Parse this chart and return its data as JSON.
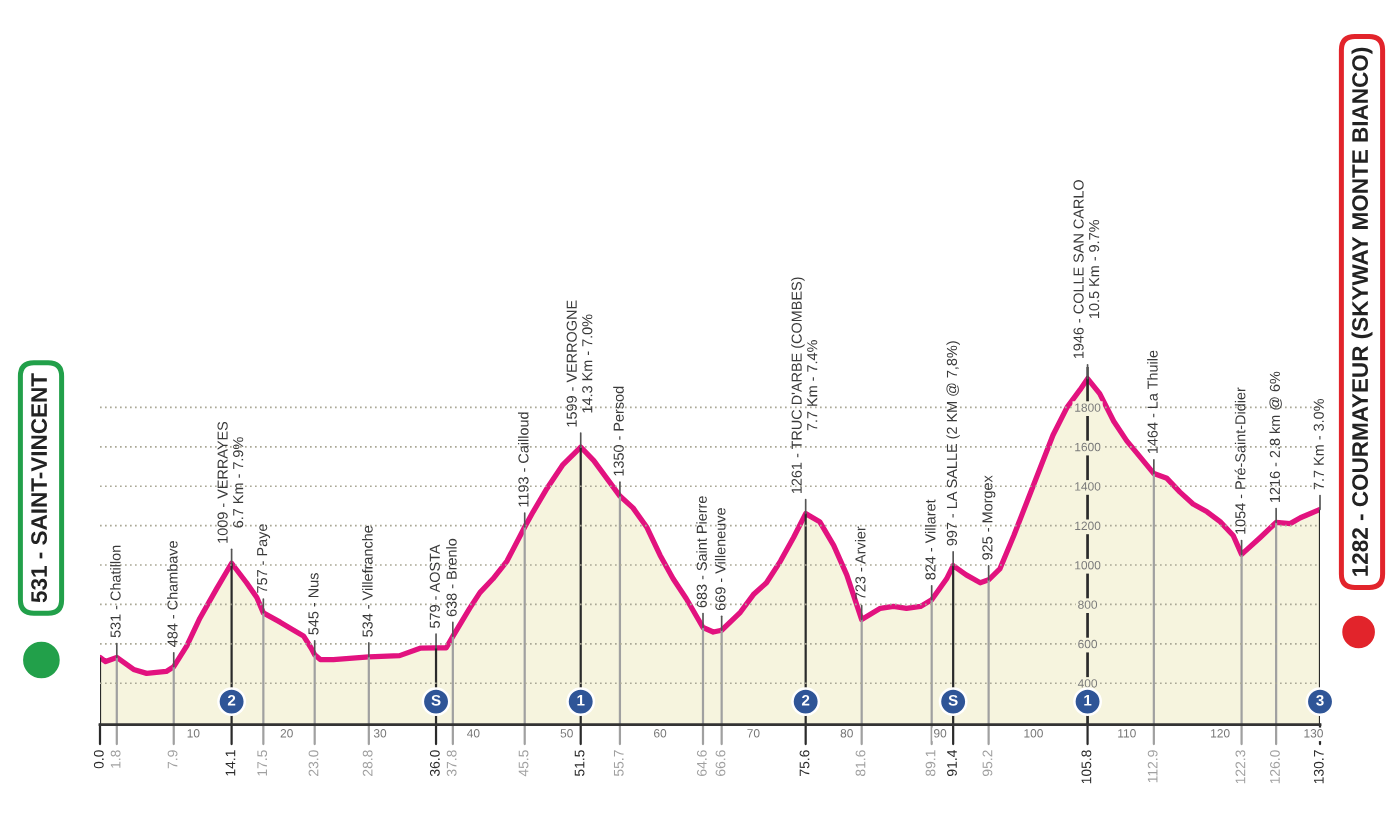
{
  "chart_data": {
    "type": "area",
    "x": [
      0,
      0.6,
      1.8,
      3.6,
      5.0,
      7.1,
      7.9,
      9.3,
      10.7,
      12.5,
      14.1,
      15.7,
      16.8,
      17.5,
      19.3,
      20.7,
      21.8,
      22.6,
      23.0,
      23.6,
      25.0,
      28.8,
      32.1,
      34.3,
      36.0,
      37.1,
      37.8,
      39.6,
      40.7,
      42.1,
      43.6,
      45.5,
      46.4,
      47.9,
      49.6,
      51.5,
      52.9,
      54.3,
      55.7,
      57.1,
      58.6,
      60.0,
      61.4,
      62.8,
      64.6,
      65.7,
      66.6,
      68.6,
      70.0,
      71.4,
      72.9,
      74.3,
      75.6,
      77.1,
      78.6,
      80.0,
      81.6,
      83.6,
      85.0,
      86.4,
      87.9,
      89.1,
      90.7,
      91.4,
      92.8,
      94.3,
      95.2,
      96.4,
      97.9,
      99.3,
      100.7,
      102.1,
      103.6,
      105.0,
      105.8,
      107.1,
      108.6,
      110.0,
      111.4,
      112.9,
      114.3,
      115.7,
      117.1,
      118.6,
      120.0,
      121.4,
      122.3,
      124.3,
      126.0,
      127.5,
      128.6,
      130.7
    ],
    "series": [
      {
        "color": "#f6f4de",
        "values": [
          531,
          510,
          531,
          470,
          450,
          460,
          484,
          590,
          730,
          880,
          1009,
          910,
          835,
          757,
          710,
          670,
          640,
          580,
          545,
          520,
          520,
          534,
          540,
          578,
          579,
          580,
          638,
          780,
          860,
          930,
          1020,
          1193,
          1270,
          1390,
          1510,
          1599,
          1530,
          1440,
          1350,
          1290,
          1190,
          1050,
          930,
          830,
          683,
          660,
          669,
          760,
          850,
          910,
          1020,
          1140,
          1261,
          1220,
          1100,
          950,
          723,
          780,
          790,
          780,
          790,
          824,
          930,
          997,
          950,
          910,
          925,
          980,
          1150,
          1320,
          1490,
          1660,
          1800,
          1890,
          1946,
          1870,
          1730,
          1630,
          1550,
          1464,
          1440,
          1370,
          1310,
          1270,
          1220,
          1150,
          1054,
          1140,
          1216,
          1210,
          1240,
          1282
        ]
      }
    ],
    "xlim": [
      0,
      130.7
    ],
    "xticks": [
      10,
      20,
      30,
      40,
      50,
      60,
      70,
      80,
      90,
      100,
      110,
      120,
      130
    ],
    "ylim": [
      190,
      2000
    ],
    "yticks": [
      400,
      600,
      800,
      1000,
      1200,
      1400,
      1600,
      1800
    ],
    "grid": "y",
    "ref_lines": [
      {
        "axis": "x",
        "value": 0.0,
        "label": "0.0",
        "color": "#2a2a2a"
      },
      {
        "axis": "x",
        "value": 1.8,
        "label": "1.8",
        "color": "#a0a0a0"
      },
      {
        "axis": "x",
        "value": 7.9,
        "label": "7.9",
        "color": "#a0a0a0"
      },
      {
        "axis": "x",
        "value": 14.1,
        "label": "14.1",
        "color": "#2a2a2a"
      },
      {
        "axis": "x",
        "value": 17.5,
        "label": "17.5",
        "color": "#a0a0a0"
      },
      {
        "axis": "x",
        "value": 23.0,
        "label": "23.0",
        "color": "#a0a0a0"
      },
      {
        "axis": "x",
        "value": 28.8,
        "label": "28.8",
        "color": "#a0a0a0"
      },
      {
        "axis": "x",
        "value": 36.0,
        "label": "36.0",
        "color": "#2a2a2a"
      },
      {
        "axis": "x",
        "value": 37.8,
        "label": "37.8",
        "color": "#a0a0a0"
      },
      {
        "axis": "x",
        "value": 45.5,
        "label": "45.5",
        "color": "#a0a0a0"
      },
      {
        "axis": "x",
        "value": 51.5,
        "label": "51.5",
        "color": "#2a2a2a"
      },
      {
        "axis": "x",
        "value": 55.7,
        "label": "55.7",
        "color": "#a0a0a0"
      },
      {
        "axis": "x",
        "value": 64.6,
        "label": "64.6",
        "color": "#a0a0a0"
      },
      {
        "axis": "x",
        "value": 66.6,
        "label": "66.6",
        "color": "#a0a0a0"
      },
      {
        "axis": "x",
        "value": 75.6,
        "label": "75.6",
        "color": "#2a2a2a"
      },
      {
        "axis": "x",
        "value": 81.6,
        "label": "81.6",
        "color": "#a0a0a0"
      },
      {
        "axis": "x",
        "value": 89.1,
        "label": "89.1",
        "color": "#a0a0a0"
      },
      {
        "axis": "x",
        "value": 91.4,
        "label": "91.4",
        "color": "#2a2a2a"
      },
      {
        "axis": "x",
        "value": 95.2,
        "label": "95.2",
        "color": "#a0a0a0"
      },
      {
        "axis": "x",
        "value": 105.8,
        "label": "105.8",
        "color": "#2a2a2a"
      },
      {
        "axis": "x",
        "value": 112.9,
        "label": "112.9",
        "color": "#a0a0a0"
      },
      {
        "axis": "x",
        "value": 122.3,
        "label": "122.3",
        "color": "#a0a0a0"
      },
      {
        "axis": "x",
        "value": 126.0,
        "label": "126.0",
        "color": "#a0a0a0"
      },
      {
        "axis": "x",
        "value": 130.7,
        "label": "130.7",
        "color": "#2a2a2a"
      }
    ],
    "annotations": [
      "531 - SAINT-VINCENT",
      "1282 - COURMAYEUR (SKYWAY MONTE BIANCO)",
      {
        "text": "531 - Chatillon",
        "x": 1.8,
        "y": 531
      },
      {
        "text": "484 - Chambave",
        "x": 7.9,
        "y": 484
      },
      {
        "text": "1009 - VERRAYES\n6.7 Km - 7.9%",
        "x": 14.1,
        "y": 1009
      },
      {
        "text": "757 - Paye",
        "x": 17.5,
        "y": 757
      },
      {
        "text": "545 - Nus",
        "x": 23.0,
        "y": 545
      },
      {
        "text": "534 - Villefranche",
        "x": 28.8,
        "y": 534
      },
      {
        "text": "579 - AOSTA",
        "x": 36.0,
        "y": 579
      },
      {
        "text": "638 - Brenlo",
        "x": 37.8,
        "y": 638
      },
      {
        "text": "1193 - Cailloud",
        "x": 45.5,
        "y": 1193
      },
      {
        "text": "1599 - VERROGNE\n14.3 Km - 7.0%",
        "x": 51.5,
        "y": 1599
      },
      {
        "text": "1350 - Persod",
        "x": 55.7,
        "y": 1350
      },
      {
        "text": "683 - Saint Pierre",
        "x": 64.6,
        "y": 683
      },
      {
        "text": "669 - Villeneuve",
        "x": 66.6,
        "y": 669
      },
      {
        "text": "1261 - TRUC D'ARBE (COMBES)\n7.7 Km - 7.4%",
        "x": 75.6,
        "y": 1261
      },
      {
        "text": "723 - Arvier",
        "x": 81.6,
        "y": 723
      },
      {
        "text": "824 - Villaret",
        "x": 89.1,
        "y": 824
      },
      {
        "text": "997 - LA SALLE (2 KM @ 7,8%)",
        "x": 91.4,
        "y": 997
      },
      {
        "text": "925 - Morgex",
        "x": 95.2,
        "y": 925
      },
      {
        "text": "1946 - COLLE SAN CARLO\n10.5 Km - 9.7%",
        "x": 105.8,
        "y": 1946
      },
      {
        "text": "1464 - La Thuile",
        "x": 112.9,
        "y": 1464
      },
      {
        "text": "1054 - Pré-Saint-Didier",
        "x": 122.3,
        "y": 1054
      },
      {
        "text": "1216 - 2.8 km @ 6%",
        "x": 126.0,
        "y": 1216
      },
      {
        "text": "7.7 Km - 3.0%",
        "x": 130.7,
        "y": 1282
      },
      {
        "text": "2",
        "x": 14.1
      },
      {
        "text": "S",
        "x": 36.0
      },
      {
        "text": "1",
        "x": 51.5
      },
      {
        "text": "2",
        "x": 75.6
      },
      {
        "text": "S",
        "x": 91.4
      },
      {
        "text": "1",
        "x": 105.8
      },
      {
        "text": "3",
        "x": 130.7
      }
    ]
  }
}
